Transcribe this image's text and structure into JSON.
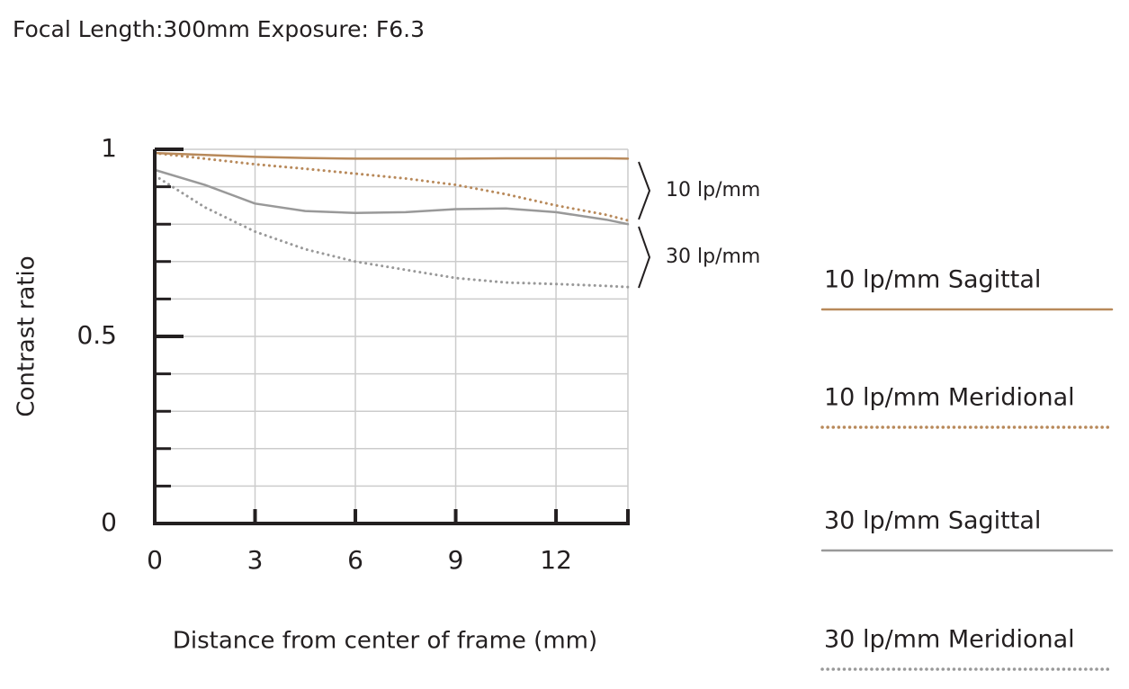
{
  "chart_data": {
    "type": "line",
    "title": "Focal Length:300mm  Exposure: F6.3",
    "x_label": "Distance from center of frame (mm)",
    "y_label": "Contrast ratio",
    "x": [
      0,
      1.5,
      3,
      4.5,
      6,
      7.5,
      9,
      10.5,
      12,
      13.5,
      14.15
    ],
    "series": [
      {
        "name": "10 lp/mm Sagittal",
        "color": "#b8895a",
        "style": "solid",
        "values": [
          0.99,
          0.985,
          0.98,
          0.977,
          0.975,
          0.975,
          0.975,
          0.976,
          0.976,
          0.976,
          0.975
        ]
      },
      {
        "name": "10 lp/mm Meridional",
        "color": "#b8895a",
        "style": "dotted",
        "values": [
          0.99,
          0.975,
          0.96,
          0.948,
          0.935,
          0.922,
          0.905,
          0.88,
          0.85,
          0.825,
          0.81
        ]
      },
      {
        "name": "30 lp/mm Sagittal",
        "color": "#999999",
        "style": "solid",
        "values": [
          0.945,
          0.905,
          0.855,
          0.835,
          0.83,
          0.832,
          0.84,
          0.842,
          0.832,
          0.812,
          0.8
        ]
      },
      {
        "name": "30 lp/mm Meridional",
        "color": "#999999",
        "style": "dotted",
        "values": [
          0.93,
          0.845,
          0.78,
          0.733,
          0.7,
          0.678,
          0.656,
          0.644,
          0.64,
          0.635,
          0.632
        ]
      }
    ],
    "annotations": [
      "10 lp/mm",
      "30 lp/mm"
    ],
    "xlim": [
      0,
      14.15
    ],
    "ylim": [
      0,
      1
    ],
    "xticks": [
      0,
      3,
      6,
      9,
      12
    ],
    "yticks": [
      0,
      0.5,
      1
    ],
    "minor_yticks": [
      0.1,
      0.2,
      0.3,
      0.4,
      0.6,
      0.7,
      0.8,
      0.9
    ],
    "grid": true
  }
}
